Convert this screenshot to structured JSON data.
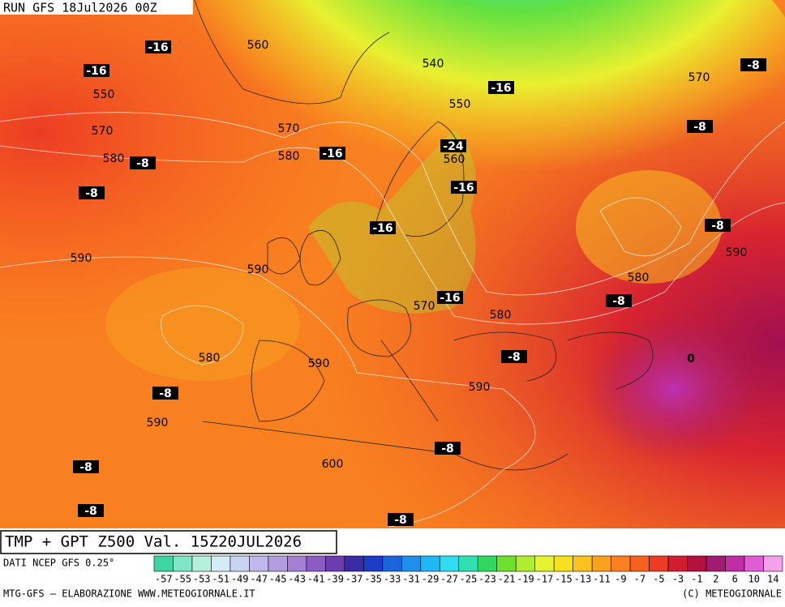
{
  "header": {
    "run": "RUN GFS 18Jul2026 00Z"
  },
  "map": {
    "title": "TMP + GPT Z500 Val. 15Z20JUL2026",
    "temperature_labels": [
      -16,
      -16,
      -8,
      -8,
      -16,
      -24,
      -16,
      -16,
      -16,
      -16,
      -8,
      -8,
      -8,
      -8,
      -8,
      -8,
      -8,
      -8,
      -8,
      -8,
      -8,
      0
    ],
    "geopotential_labels": [
      560,
      550,
      570,
      580,
      540,
      550,
      570,
      580,
      560,
      590,
      590,
      570,
      580,
      580,
      590,
      590,
      590,
      600,
      570,
      590,
      580,
      590
    ]
  },
  "scale": {
    "source": "DATI NCEP GFS 0.25°",
    "labels": [
      -57,
      -55,
      -53,
      -51,
      -49,
      -47,
      -45,
      -43,
      -41,
      -39,
      -37,
      -35,
      -33,
      -31,
      -29,
      -27,
      -25,
      -23,
      -21,
      -19,
      -17,
      -15,
      -13,
      -11,
      -9,
      -7,
      -5,
      -3,
      -1,
      2,
      6,
      10,
      14
    ],
    "colors": [
      "#3fd4a4",
      "#7de6c4",
      "#b4f0dc",
      "#d6ecf4",
      "#c8d4f0",
      "#c0b8ec",
      "#b49ce0",
      "#a480d4",
      "#8c5cc4",
      "#6c3cb0",
      "#3c2ca4",
      "#1c3cc8",
      "#1c64dc",
      "#1c90ec",
      "#20b8f4",
      "#30dcf0",
      "#30e0b0",
      "#30d860",
      "#70e030",
      "#b0ec30",
      "#e4f430",
      "#f8e020",
      "#fcc020",
      "#fca020",
      "#fc8020",
      "#f86020",
      "#ec3c24",
      "#d41c30",
      "#b41040",
      "#a01c70",
      "#c02ca4",
      "#e05cd4",
      "#f4a0ec"
    ]
  },
  "footer": {
    "credit": "MTG-GFS — ELABORAZIONE WWW.METEOGIORNALE.IT",
    "copyright": "(C) METEOGIORNALE"
  }
}
